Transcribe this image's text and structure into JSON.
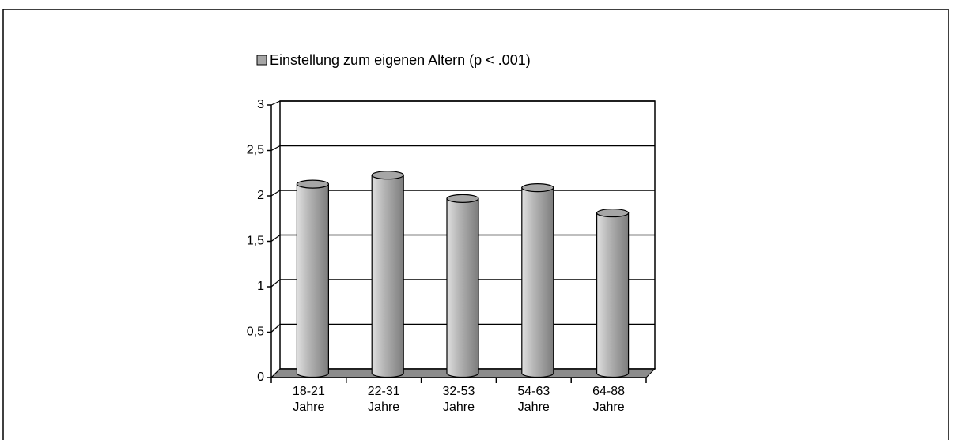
{
  "chart_data": {
    "type": "bar",
    "legend_label": "Einstellung zum eigenen Altern (p < .001)",
    "categories": [
      "18-21 Jahre",
      "22-31 Jahre",
      "32-53 Jahre",
      "54-63 Jahre",
      "64-88 Jahre"
    ],
    "values": [
      2.1,
      2.2,
      1.94,
      2.06,
      1.78
    ],
    "color": "#a6a6a6",
    "ylim": [
      0,
      3
    ],
    "yticks": [
      0,
      {
        "value": 0.5,
        "label": "0,5"
      },
      1,
      {
        "value": 1.5,
        "label": "1,5"
      },
      2,
      {
        "value": 2.5,
        "label": "2,5"
      },
      3
    ],
    "grid": true
  }
}
